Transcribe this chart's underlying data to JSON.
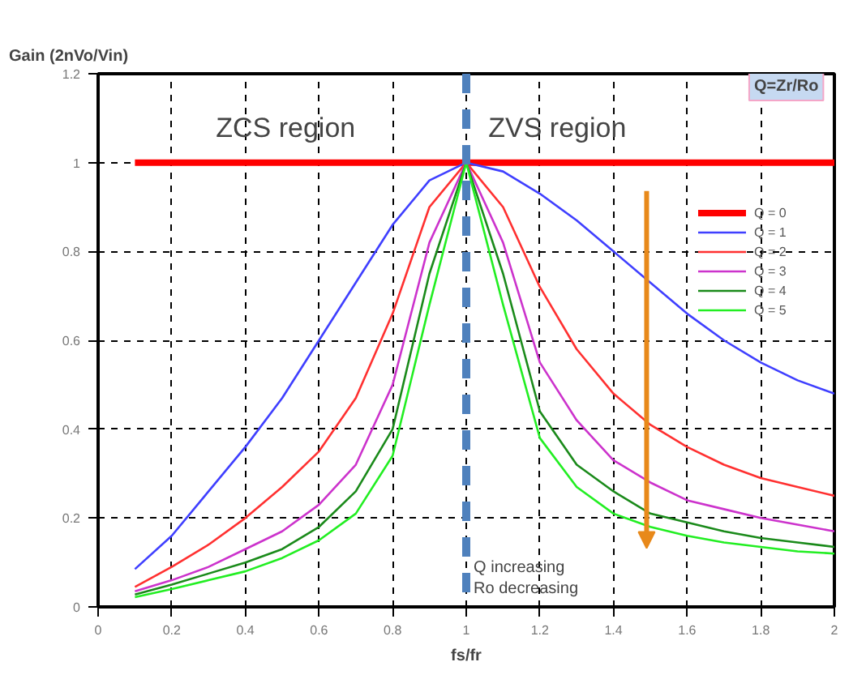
{
  "chart_data": {
    "type": "line",
    "ylabel": "Gain (2nVo/Vin)",
    "xlabel": "fs/fr",
    "x": [
      0.1,
      0.2,
      0.3,
      0.4,
      0.5,
      0.6,
      0.7,
      0.8,
      0.9,
      1.0,
      1.1,
      1.2,
      1.3,
      1.4,
      1.5,
      1.6,
      1.7,
      1.8,
      1.9,
      2.0
    ],
    "series": [
      {
        "name": "Q = 0",
        "color": "#ff0000",
        "x": [
          0.1,
          2.0
        ],
        "values": [
          1,
          1
        ]
      },
      {
        "name": "Q = 1",
        "color": "#3f3fff",
        "values": [
          0.085,
          0.16,
          0.26,
          0.36,
          0.47,
          0.6,
          0.73,
          0.86,
          0.96,
          1,
          0.98,
          0.93,
          0.87,
          0.8,
          0.73,
          0.66,
          0.6,
          0.55,
          0.51,
          0.48
        ]
      },
      {
        "name": "Q = 2",
        "color": "#ff3030",
        "values": [
          0.045,
          0.09,
          0.14,
          0.2,
          0.27,
          0.35,
          0.47,
          0.66,
          0.9,
          1,
          0.9,
          0.72,
          0.58,
          0.48,
          0.41,
          0.36,
          0.32,
          0.29,
          0.27,
          0.25
        ]
      },
      {
        "name": "Q = 3",
        "color": "#cc33cc",
        "values": [
          0.035,
          0.06,
          0.09,
          0.13,
          0.17,
          0.23,
          0.32,
          0.5,
          0.82,
          1,
          0.82,
          0.55,
          0.42,
          0.33,
          0.28,
          0.24,
          0.22,
          0.2,
          0.185,
          0.17
        ]
      },
      {
        "name": "Q = 4",
        "color": "#1a8a1a",
        "values": [
          0.028,
          0.05,
          0.075,
          0.1,
          0.13,
          0.18,
          0.26,
          0.4,
          0.75,
          1,
          0.75,
          0.44,
          0.32,
          0.26,
          0.21,
          0.19,
          0.17,
          0.155,
          0.145,
          0.135
        ]
      },
      {
        "name": "Q = 5",
        "color": "#22ee22",
        "values": [
          0.022,
          0.04,
          0.06,
          0.08,
          0.11,
          0.15,
          0.21,
          0.34,
          0.68,
          1,
          0.68,
          0.38,
          0.27,
          0.21,
          0.18,
          0.16,
          0.145,
          0.135,
          0.125,
          0.12
        ]
      }
    ],
    "xlim": [
      0,
      2
    ],
    "ylim": [
      0,
      1.2
    ],
    "xticks": [
      0,
      0.2,
      0.4,
      0.6,
      0.8,
      1,
      1.2,
      1.4,
      1.6,
      1.8,
      2
    ],
    "yticks": [
      0,
      0.2,
      0.4,
      0.6,
      0.8,
      1,
      1.2
    ],
    "ref_lines": [
      {
        "axis": "x",
        "value": 1,
        "color": "#4f81bd",
        "line_style": "dashed"
      }
    ],
    "annotations": [
      "ZCS region",
      "ZVS region",
      "Q=Zr/Ro",
      "Q  increasing\nRo decreasing"
    ],
    "grid": true,
    "legend": "top right",
    "marker": "none",
    "line_style": "solid"
  }
}
